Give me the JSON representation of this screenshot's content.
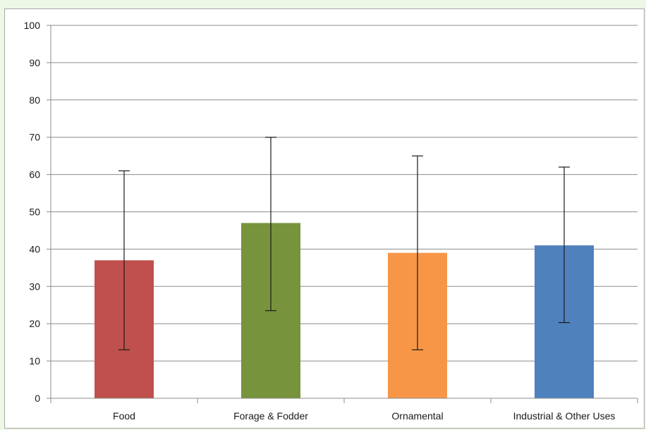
{
  "chart_data": {
    "type": "bar",
    "title": "",
    "xlabel": "",
    "ylabel": "",
    "ylim": [
      0,
      100
    ],
    "yticks": [
      0,
      10,
      20,
      30,
      40,
      50,
      60,
      70,
      80,
      90,
      100
    ],
    "grid": true,
    "legend": "none",
    "categories": [
      "Food",
      "Forage & Fodder",
      "Ornamental",
      "Industrial & Other Uses"
    ],
    "values": [
      37,
      47,
      39,
      41
    ],
    "error_low": [
      13,
      23.5,
      13,
      20.3
    ],
    "error_high": [
      61,
      70,
      65,
      62
    ],
    "colors": [
      "#c0504d",
      "#77933c",
      "#f79646",
      "#4f81bd"
    ]
  }
}
